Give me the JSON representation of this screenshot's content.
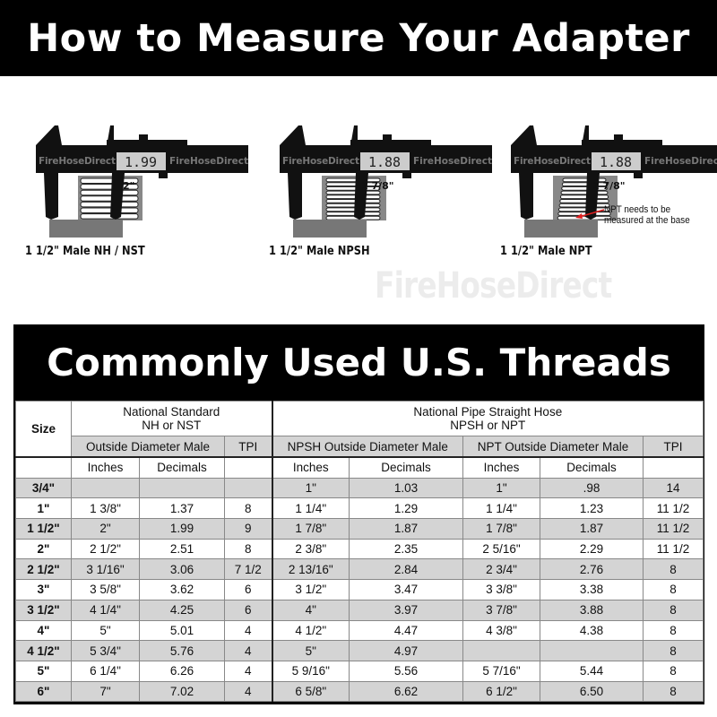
{
  "header": {
    "title": "How to Measure Your Adapter"
  },
  "calipers": [
    {
      "reading": "1.99",
      "measure": "2\"",
      "label": "1 1/2\" Male NH / NST",
      "brand": "FireHoseDirect"
    },
    {
      "reading": "1.88",
      "measure": "1 7/8\"",
      "label": "1 1/2\" Male NPSH",
      "brand": "FireHoseDirect"
    },
    {
      "reading": "1.88",
      "measure": "1 7/8\"",
      "label": "1 1/2\" Male NPT",
      "brand": "FireHoseDirect"
    }
  ],
  "note": "NPT needs to be measured at the base",
  "watermark": "FireHoseDirect",
  "colors": {
    "band": "#000000",
    "stripe": "#d4d4d4",
    "arrow": "#e02020"
  },
  "table": {
    "title": "Commonly Used U.S. Threads",
    "size_header": "Size",
    "nst_group": "National Standard",
    "nst_group_sub": "NH or NST",
    "npsh_group": "National Pipe Straight Hose",
    "npsh_group_sub": "NPSH or NPT",
    "nst_od": "Outside Diameter Male",
    "tpi": "TPI",
    "npsh_od": "NPSH Outside Diameter Male",
    "npt_od": "NPT Outside Diameter Male",
    "inches": "Inches",
    "decimals": "Decimals",
    "rows": [
      [
        "3/4\"",
        "",
        "",
        "",
        "1\"",
        "1.03",
        "1\"",
        ".98",
        "14"
      ],
      [
        "1\"",
        "1 3/8\"",
        "1.37",
        "8",
        "1 1/4\"",
        "1.29",
        "1 1/4\"",
        "1.23",
        "11 1/2"
      ],
      [
        "1 1/2\"",
        "2\"",
        "1.99",
        "9",
        "1 7/8\"",
        "1.87",
        "1 7/8\"",
        "1.87",
        "11 1/2"
      ],
      [
        "2\"",
        "2 1/2\"",
        "2.51",
        "8",
        "2 3/8\"",
        "2.35",
        "2 5/16\"",
        "2.29",
        "11 1/2"
      ],
      [
        "2 1/2\"",
        "3 1/16\"",
        "3.06",
        "7 1/2",
        "2 13/16\"",
        "2.84",
        "2 3/4\"",
        "2.76",
        "8"
      ],
      [
        "3\"",
        "3 5/8\"",
        "3.62",
        "6",
        "3 1/2\"",
        "3.47",
        "3 3/8\"",
        "3.38",
        "8"
      ],
      [
        "3 1/2\"",
        "4 1/4\"",
        "4.25",
        "6",
        "4\"",
        "3.97",
        "3 7/8\"",
        "3.88",
        "8"
      ],
      [
        "4\"",
        "5\"",
        "5.01",
        "4",
        "4 1/2\"",
        "4.47",
        "4 3/8\"",
        "4.38",
        "8"
      ],
      [
        "4 1/2\"",
        "5 3/4\"",
        "5.76",
        "4",
        "5\"",
        "4.97",
        "",
        "",
        "8"
      ],
      [
        "5\"",
        "6 1/4\"",
        "6.26",
        "4",
        "5 9/16\"",
        "5.56",
        "5 7/16\"",
        "5.44",
        "8"
      ],
      [
        "6\"",
        "7\"",
        "7.02",
        "4",
        "6 5/8\"",
        "6.62",
        "6 1/2\"",
        "6.50",
        "8"
      ]
    ]
  }
}
